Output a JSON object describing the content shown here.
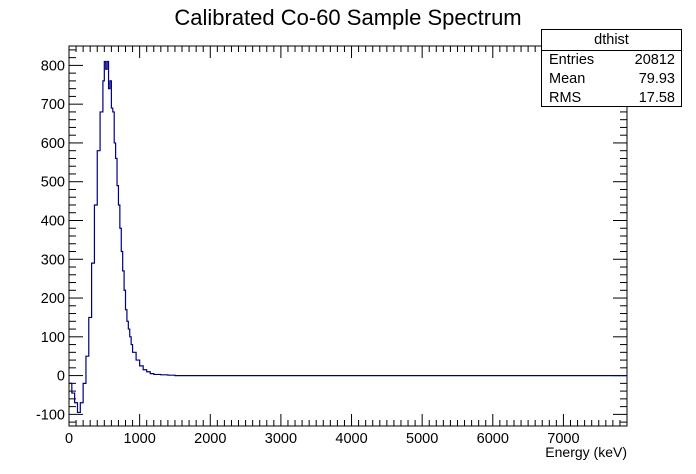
{
  "chart_data": {
    "type": "line",
    "title": "Calibrated Co-60 Sample Spectrum",
    "xlabel": "Energy (keV)",
    "ylabel": "",
    "xlim": [
      0,
      7900
    ],
    "ylim": [
      -130,
      850
    ],
    "xticks": [
      0,
      1000,
      2000,
      3000,
      4000,
      5000,
      6000,
      7000
    ],
    "yticks": [
      -100,
      0,
      100,
      200,
      300,
      400,
      500,
      600,
      700,
      800
    ],
    "grid": false,
    "line_color": "#000080",
    "series": [
      {
        "x": [
          0,
          40,
          80,
          120,
          160,
          200,
          240,
          280,
          320,
          360,
          400,
          440,
          480,
          500,
          520,
          540,
          560,
          580,
          600,
          620,
          640,
          660,
          680,
          700,
          720,
          740,
          760,
          780,
          800,
          820,
          840,
          860,
          880,
          900,
          950,
          1000,
          1050,
          1100,
          1150,
          1200,
          1300,
          1400,
          1500,
          1600,
          2000,
          3000,
          4000,
          5000,
          6000,
          7000,
          7900
        ],
        "values": [
          -20,
          -45,
          -70,
          -95,
          -70,
          -20,
          50,
          150,
          290,
          440,
          580,
          680,
          760,
          810,
          790,
          810,
          740,
          760,
          690,
          680,
          600,
          560,
          490,
          440,
          380,
          320,
          270,
          220,
          170,
          140,
          120,
          100,
          80,
          60,
          40,
          25,
          15,
          10,
          5,
          3,
          2,
          1,
          0,
          0,
          0,
          0,
          0,
          0,
          0,
          0,
          0
        ]
      }
    ]
  },
  "stats": {
    "title": "dthist",
    "rows": [
      {
        "label": "Entries",
        "value": "20812"
      },
      {
        "label": "Mean",
        "value": "79.93"
      },
      {
        "label": "RMS",
        "value": "17.58"
      }
    ]
  }
}
